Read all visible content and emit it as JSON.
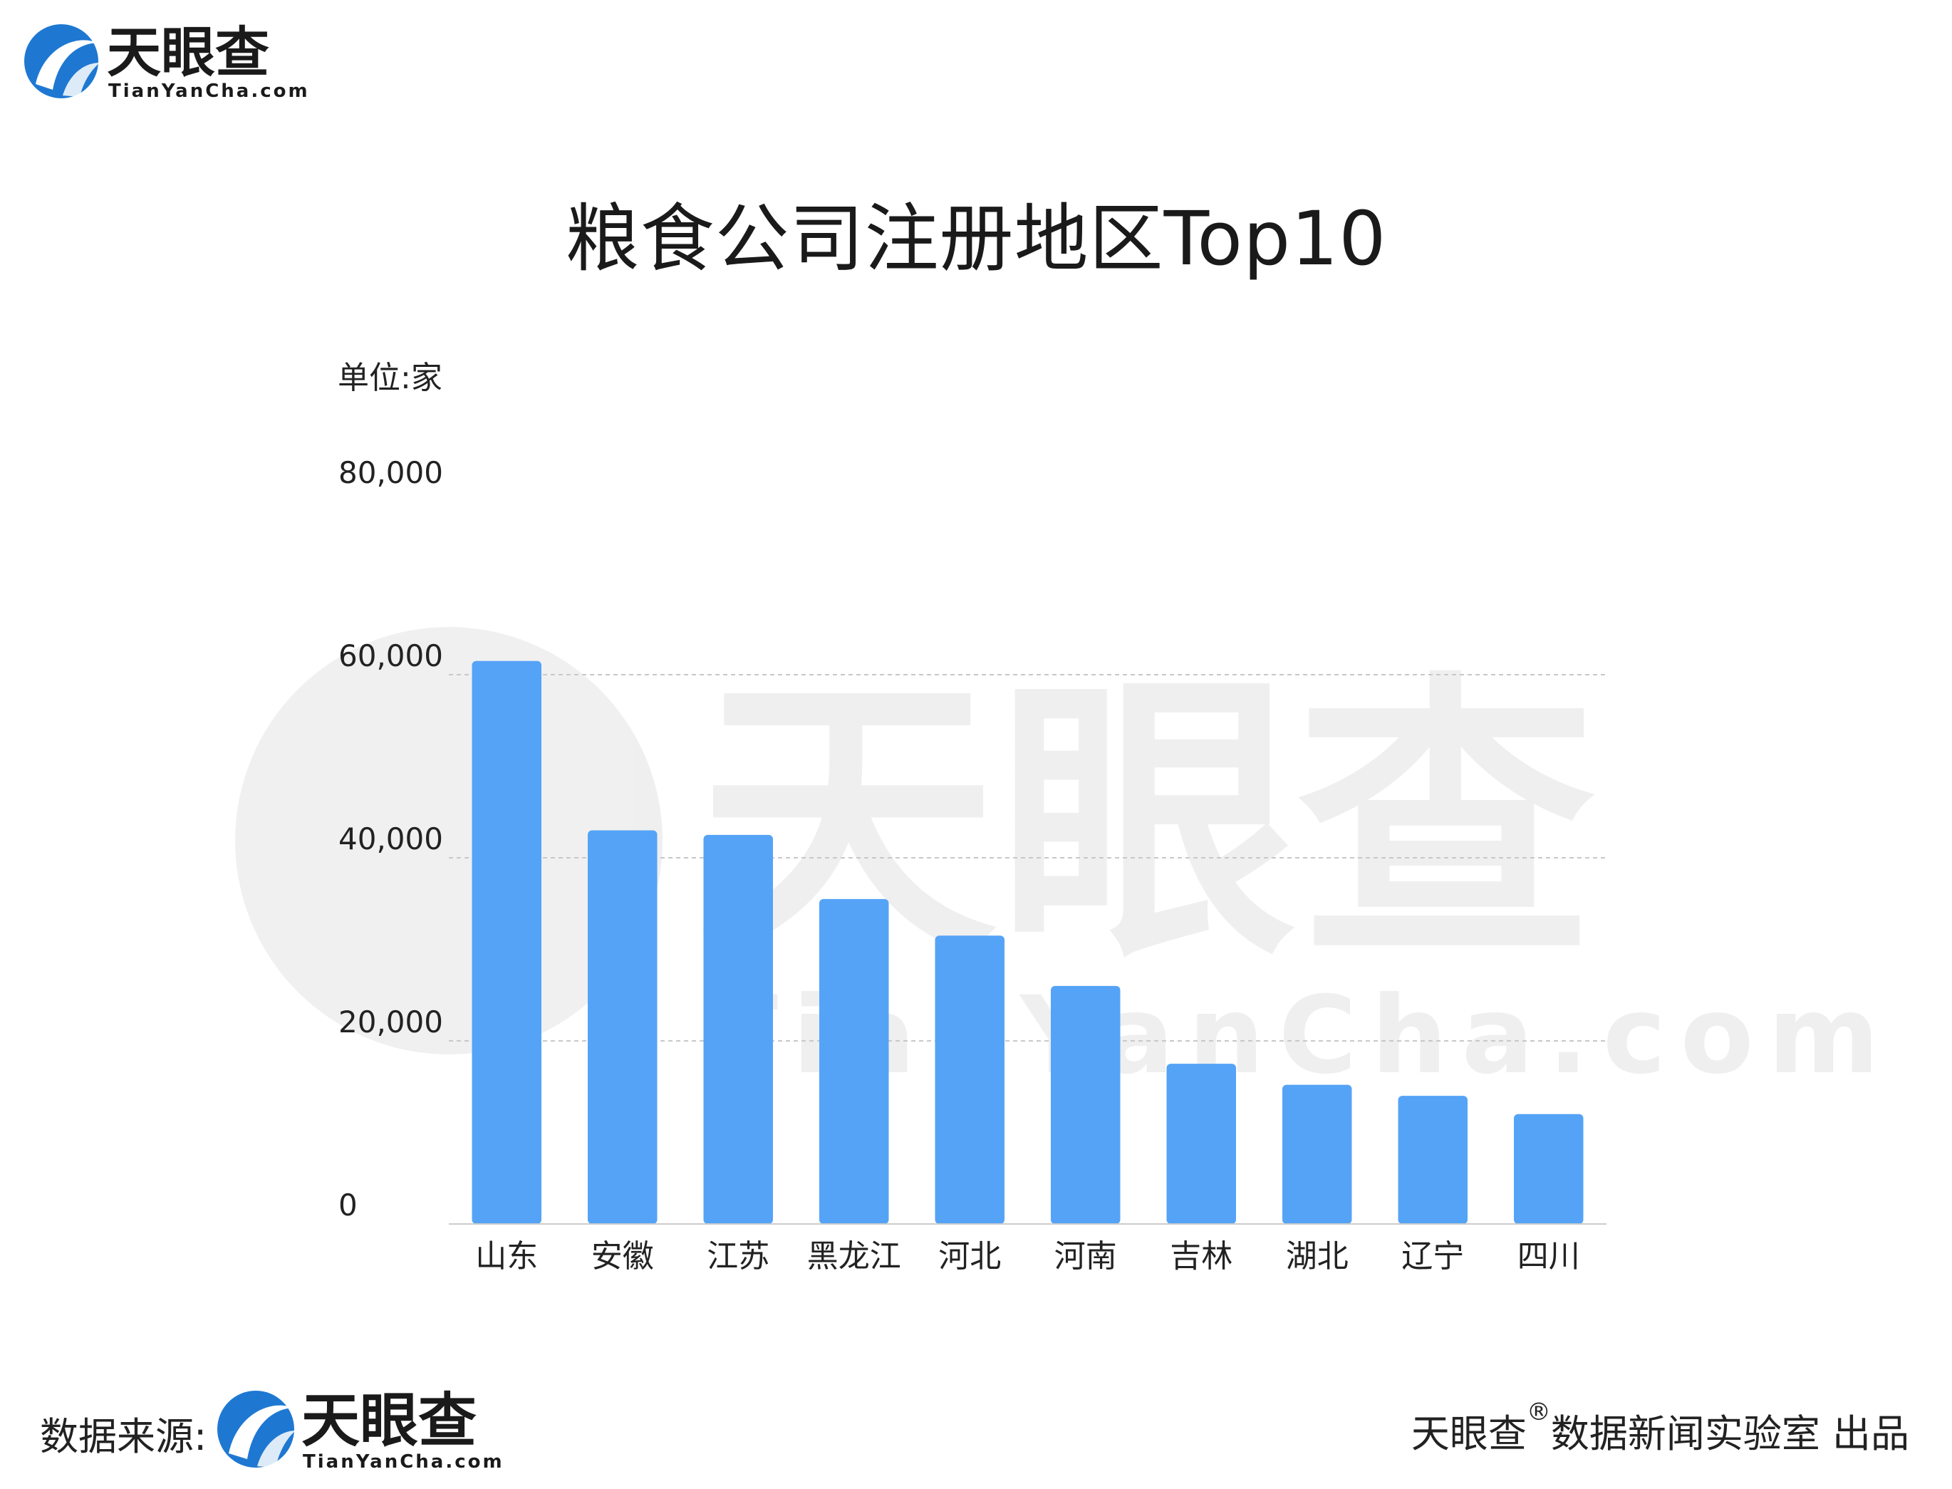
{
  "brand": {
    "name": "天眼查",
    "domain": "TianYanCha.com",
    "colors": {
      "primary": "#1e78d2",
      "accent": "#3b9bf0"
    }
  },
  "watermark": {
    "name": "天眼查",
    "domain": "TianYanCha.com"
  },
  "footer": {
    "source_label": "数据来源:",
    "credit_brand": "天眼查",
    "credit_mark": "®",
    "credit_text": "数据新闻实验室 出品"
  },
  "chart_data": {
    "type": "bar",
    "title": "粮食公司注册地区Top10",
    "unit_label": "单位:家",
    "categories": [
      "山东",
      "安徽",
      "江苏",
      "黑龙江",
      "河北",
      "河南",
      "吉林",
      "湖北",
      "辽宁",
      "四川"
    ],
    "values": [
      61500,
      43000,
      42500,
      35500,
      31500,
      26000,
      17500,
      15200,
      14000,
      12000
    ],
    "ylim": [
      0,
      80000
    ],
    "yticks": [
      0,
      20000,
      40000,
      60000,
      80000
    ],
    "ytick_labels": [
      "0",
      "20,000",
      "40,000",
      "60,000",
      "80,000"
    ],
    "grid": true,
    "bar_color": "#55a3f7",
    "grid_color": "#c8c8c8",
    "axis_color": "#cccccc"
  }
}
